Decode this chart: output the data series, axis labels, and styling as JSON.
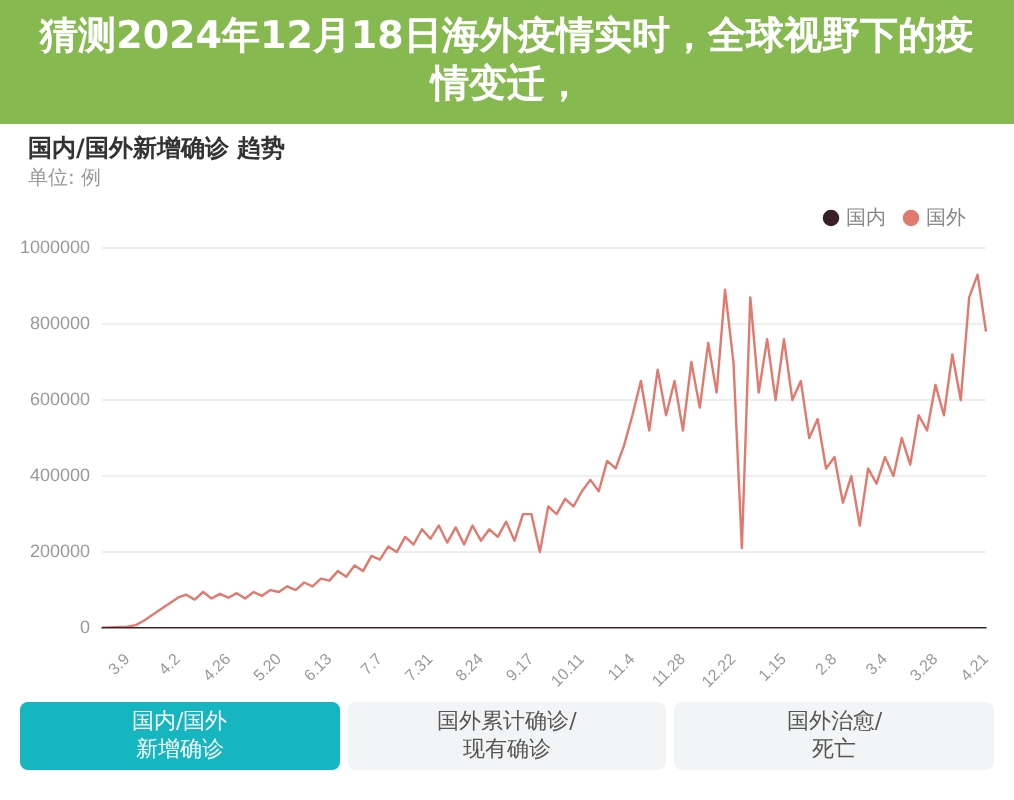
{
  "chart_data": {
    "type": "line",
    "title": "猜测2024年12月18日海外疫情实时，全球视野下的疫情变迁，",
    "subtitle": "国内/国外新增确诊 趋势",
    "ylabel": "单位: 例",
    "categories": [
      null,
      null,
      null,
      "3.9",
      null,
      null,
      null,
      null,
      null,
      "4.2",
      null,
      null,
      null,
      null,
      null,
      "4.26",
      null,
      null,
      null,
      null,
      null,
      "5.20",
      null,
      null,
      null,
      null,
      null,
      "6.13",
      null,
      null,
      null,
      null,
      null,
      "7.7",
      null,
      null,
      null,
      null,
      null,
      "7.31",
      null,
      null,
      null,
      null,
      null,
      "8.24",
      null,
      null,
      null,
      null,
      null,
      "9.17",
      null,
      null,
      null,
      null,
      null,
      "10.11",
      null,
      null,
      null,
      null,
      null,
      "11.4",
      null,
      null,
      null,
      null,
      null,
      "11.28",
      null,
      null,
      null,
      null,
      null,
      "12.22",
      null,
      null,
      null,
      null,
      null,
      "1.15",
      null,
      null,
      null,
      null,
      null,
      "2.8",
      null,
      null,
      null,
      null,
      null,
      "3.4",
      null,
      null,
      null,
      null,
      null,
      "3.28",
      null,
      null,
      null,
      null,
      null,
      "4.21"
    ],
    "series": [
      {
        "name": "国内",
        "color": "#3a1f2b",
        "values": [
          0,
          0,
          0,
          0,
          0,
          0,
          0,
          0,
          0,
          0,
          0,
          0,
          0,
          0,
          0,
          0,
          0,
          0,
          0,
          0,
          0,
          0,
          0,
          0,
          0,
          0,
          0,
          0,
          0,
          0,
          0,
          0,
          0,
          0,
          0,
          0,
          0,
          0,
          0,
          0,
          0,
          0,
          0,
          0,
          0,
          0,
          0,
          0,
          0,
          0,
          0,
          0,
          0,
          0,
          0,
          0,
          0,
          0,
          0,
          0,
          0,
          0,
          0,
          0,
          0,
          0,
          0,
          0,
          0,
          0,
          0,
          0,
          0,
          0,
          0,
          0,
          0,
          0,
          0,
          0,
          0,
          0,
          0,
          0,
          0,
          0,
          0,
          0,
          0,
          0,
          0,
          0,
          0,
          0,
          0,
          0,
          0,
          0,
          0,
          0,
          0,
          0,
          0,
          0,
          0,
          0
        ]
      },
      {
        "name": "国外",
        "color": "#e07a6e",
        "values": [
          1000,
          2000,
          3000,
          4000,
          8000,
          20000,
          35000,
          50000,
          65000,
          80000,
          88000,
          75000,
          95000,
          78000,
          90000,
          80000,
          92000,
          78000,
          95000,
          85000,
          100000,
          95000,
          110000,
          100000,
          120000,
          110000,
          130000,
          125000,
          150000,
          135000,
          165000,
          150000,
          190000,
          180000,
          215000,
          200000,
          240000,
          220000,
          260000,
          235000,
          270000,
          225000,
          265000,
          220000,
          270000,
          230000,
          260000,
          240000,
          280000,
          230000,
          300000,
          300000,
          200000,
          320000,
          300000,
          340000,
          320000,
          360000,
          390000,
          360000,
          440000,
          420000,
          480000,
          560000,
          650000,
          520000,
          680000,
          560000,
          650000,
          520000,
          700000,
          580000,
          750000,
          620000,
          890000,
          700000,
          210000,
          870000,
          620000,
          760000,
          600000,
          760000,
          600000,
          650000,
          500000,
          550000,
          420000,
          450000,
          330000,
          400000,
          270000,
          420000,
          380000,
          450000,
          400000,
          500000,
          430000,
          560000,
          520000,
          640000,
          560000,
          720000,
          600000,
          870000,
          930000,
          780000
        ]
      }
    ],
    "ylim": [
      0,
      1000000
    ],
    "yticks": [
      0,
      200000,
      400000,
      600000,
      800000,
      1000000
    ],
    "grid": "y",
    "legend": "top right",
    "annotations": [
      "国内/国外新增确诊",
      "国外累计确诊/现有确诊",
      "国外治愈/死亡"
    ]
  }
}
